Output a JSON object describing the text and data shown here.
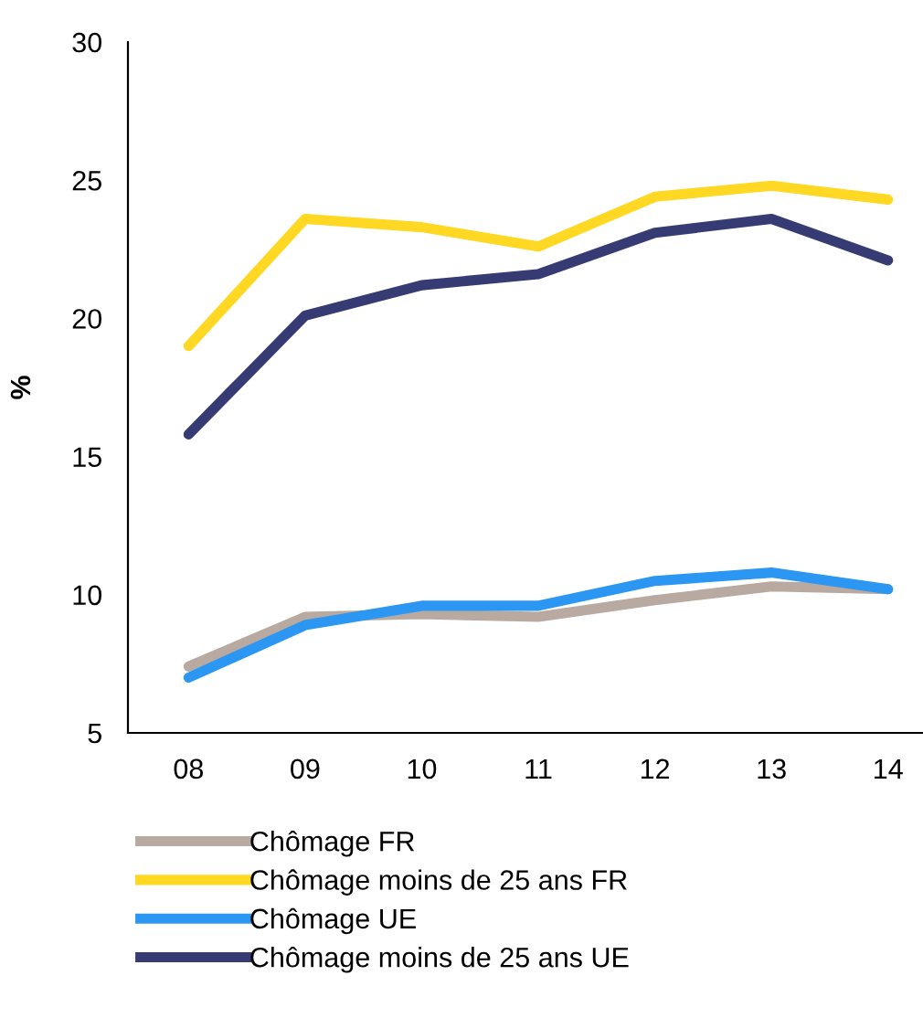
{
  "chart_data": {
    "type": "line",
    "ylabel": "%",
    "categories": [
      "08",
      "09",
      "10",
      "11",
      "12",
      "13",
      "14"
    ],
    "ylim": [
      5,
      30
    ],
    "yticks": [
      5,
      10,
      15,
      20,
      25,
      30
    ],
    "grid": false,
    "legend": "bottom",
    "marker": "none",
    "line_style": "solid",
    "series": [
      {
        "name": "Chômage FR",
        "color": "#b8aaa1",
        "values": [
          7.4,
          9.2,
          9.3,
          9.2,
          9.8,
          10.3,
          10.2
        ]
      },
      {
        "name": "Chômage moins de 25 ans FR",
        "color": "#fed823",
        "values": [
          19.0,
          23.6,
          23.3,
          22.6,
          24.4,
          24.8,
          24.3
        ]
      },
      {
        "name": "Chômage UE",
        "color": "#2b97f3",
        "values": [
          7.0,
          8.9,
          9.6,
          9.6,
          10.5,
          10.8,
          10.2
        ]
      },
      {
        "name": "Chômage moins de 25 ans UE",
        "color": "#363c73",
        "values": [
          15.8,
          20.1,
          21.2,
          21.6,
          23.1,
          23.6,
          22.1
        ]
      }
    ]
  }
}
